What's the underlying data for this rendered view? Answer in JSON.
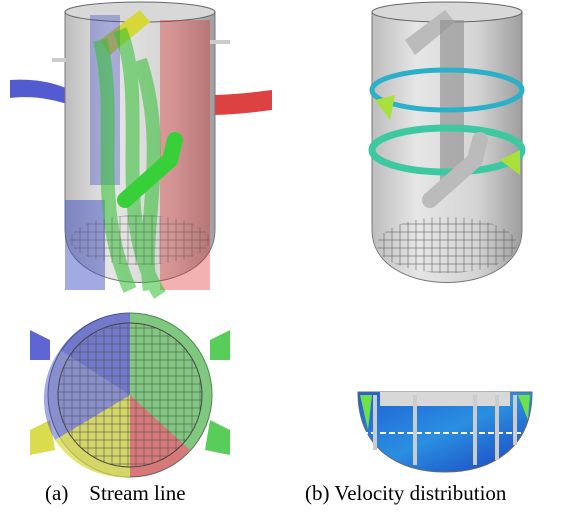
{
  "captions": {
    "a": "(a)    Stream line",
    "b": "(b) Velocity distribution"
  }
}
